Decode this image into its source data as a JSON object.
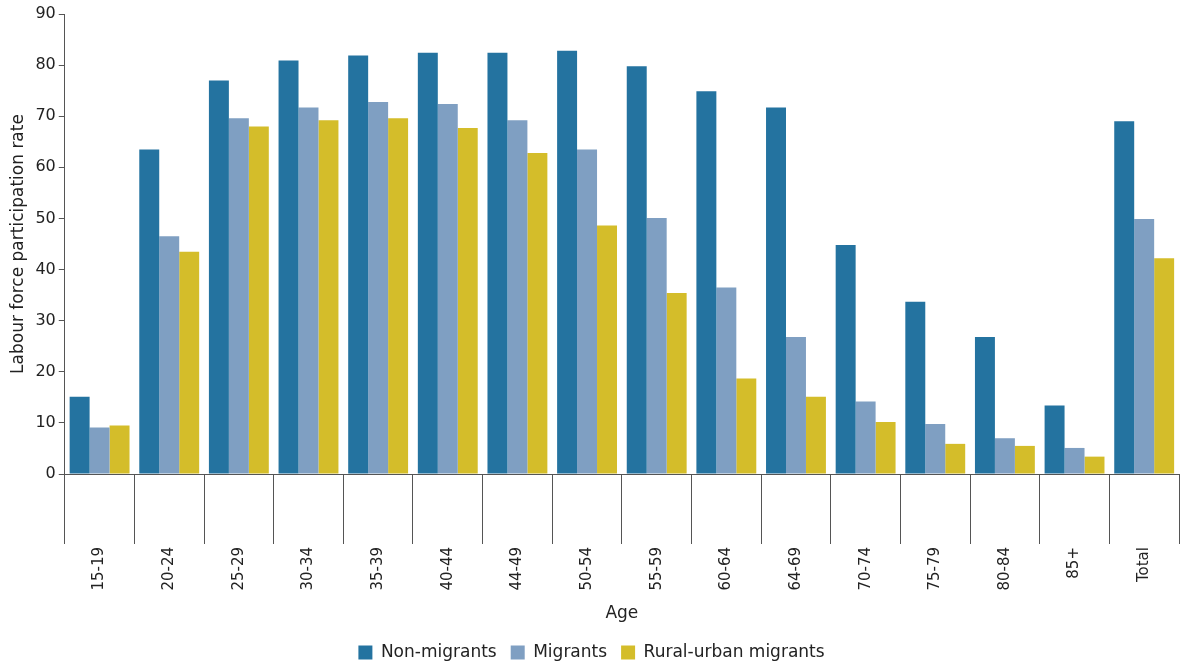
{
  "chart_data": {
    "type": "bar",
    "xlabel": "Age",
    "ylabel": "Labour force participation rate",
    "categories": [
      "15-19",
      "20-24",
      "25-29",
      "30-34",
      "35-39",
      "40-44",
      "44-49",
      "50-54",
      "55-59",
      "60-64",
      "64-69",
      "70-74",
      "75-79",
      "80-84",
      "85+",
      "Total"
    ],
    "series": [
      {
        "name": "Non-migrants",
        "color": "#2473a0",
        "values": [
          15.1,
          63.5,
          77,
          80.9,
          81.9,
          82.4,
          82.4,
          82.8,
          79.8,
          74.9,
          71.7,
          44.8,
          33.7,
          26.8,
          13.4,
          69
        ]
      },
      {
        "name": "Migrants",
        "color": "#7f9fc2",
        "values": [
          9.1,
          46.5,
          69.6,
          71.7,
          72.8,
          72.4,
          69.2,
          63.5,
          50.1,
          36.5,
          26.8,
          14.2,
          9.8,
          7,
          5.1,
          49.9
        ]
      },
      {
        "name": "Rural-urban migrants",
        "color": "#d4bd2a",
        "values": [
          9.5,
          43.5,
          68,
          69.2,
          69.6,
          67.7,
          62.8,
          48.6,
          35.4,
          18.7,
          15.1,
          10.2,
          5.9,
          5.5,
          3.4,
          42.2
        ]
      }
    ],
    "ylim": [
      0,
      90
    ],
    "yticks": [
      0,
      10,
      20,
      30,
      40,
      50,
      60,
      70,
      80,
      90
    ],
    "grid": false,
    "legend": "bottom"
  }
}
